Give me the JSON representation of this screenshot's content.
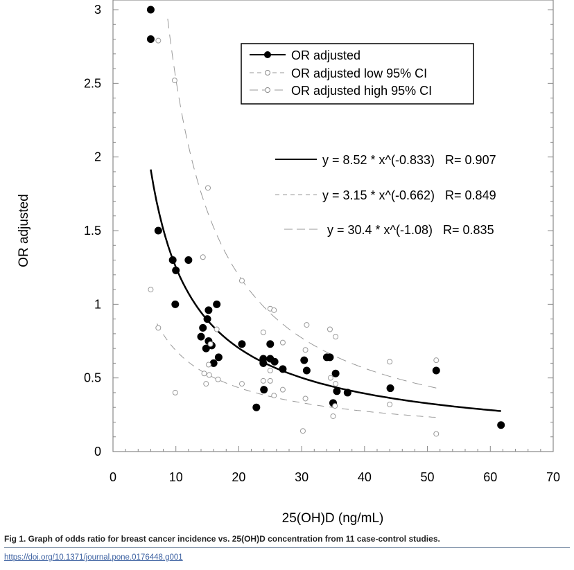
{
  "chart_data": {
    "type": "scatter",
    "title": "",
    "xlabel": "25(OH)D (ng/mL)",
    "ylabel": "OR adjusted",
    "xlim": [
      0,
      70
    ],
    "ylim": [
      0,
      3
    ],
    "xticks": [
      "0",
      "10",
      "20",
      "30",
      "40",
      "50",
      "60",
      "70"
    ],
    "yticks": [
      "0",
      "0.5",
      "1",
      "1.5",
      "2",
      "2.5",
      "3"
    ],
    "legend_position": "top-right",
    "series": [
      {
        "name": "OR adjusted",
        "marker": "filled",
        "points": [
          [
            6,
            3.0
          ],
          [
            6,
            2.8
          ],
          [
            7.2,
            1.5
          ],
          [
            9.5,
            1.3
          ],
          [
            12,
            1.3
          ],
          [
            10,
            1.23
          ],
          [
            9.9,
            1.0
          ],
          [
            16.5,
            1.0
          ],
          [
            15.2,
            0.96
          ],
          [
            15,
            0.9
          ],
          [
            14.3,
            0.84
          ],
          [
            14,
            0.78
          ],
          [
            15.2,
            0.75
          ],
          [
            15.7,
            0.72
          ],
          [
            14.8,
            0.7
          ],
          [
            16.8,
            0.64
          ],
          [
            16,
            0.6
          ],
          [
            20.5,
            0.73
          ],
          [
            25,
            0.73
          ],
          [
            23.9,
            0.63
          ],
          [
            23.9,
            0.6
          ],
          [
            25,
            0.63
          ],
          [
            25.7,
            0.61
          ],
          [
            27,
            0.56
          ],
          [
            24,
            0.42
          ],
          [
            22.8,
            0.3
          ],
          [
            30.4,
            0.62
          ],
          [
            30.8,
            0.55
          ],
          [
            34,
            0.64
          ],
          [
            34.5,
            0.64
          ],
          [
            35.4,
            0.53
          ],
          [
            35.6,
            0.41
          ],
          [
            37.3,
            0.4
          ],
          [
            35,
            0.33
          ],
          [
            44.1,
            0.43
          ],
          [
            51.4,
            0.55
          ],
          [
            61.7,
            0.18
          ]
        ]
      },
      {
        "name": "OR adjusted low 95% CI",
        "marker": "open",
        "points": [
          [
            6,
            1.1
          ],
          [
            7.2,
            0.84
          ],
          [
            9.9,
            0.4
          ],
          [
            14.5,
            0.53
          ],
          [
            14.8,
            0.46
          ],
          [
            15.2,
            0.59
          ],
          [
            15.3,
            0.52
          ],
          [
            16.7,
            0.49
          ],
          [
            20.5,
            0.46
          ],
          [
            23.9,
            0.48
          ],
          [
            25,
            0.48
          ],
          [
            25.6,
            0.38
          ],
          [
            27,
            0.42
          ],
          [
            30.6,
            0.36
          ],
          [
            30.2,
            0.14
          ],
          [
            35,
            0.24
          ],
          [
            35.3,
            0.31
          ],
          [
            44,
            0.32
          ],
          [
            51.4,
            0.12
          ],
          [
            34.6,
            0.5
          ],
          [
            35.4,
            0.46
          ],
          [
            25,
            0.55
          ]
        ]
      },
      {
        "name": "OR adjusted high 95% CI",
        "marker": "open",
        "points": [
          [
            7.2,
            2.79
          ],
          [
            9.8,
            2.52
          ],
          [
            15.1,
            1.79
          ],
          [
            14.3,
            1.32
          ],
          [
            20.5,
            1.16
          ],
          [
            25,
            0.97
          ],
          [
            25.6,
            0.96
          ],
          [
            23.9,
            0.81
          ],
          [
            27,
            0.74
          ],
          [
            30.8,
            0.86
          ],
          [
            30.6,
            0.69
          ],
          [
            34.5,
            0.83
          ],
          [
            35.4,
            0.78
          ],
          [
            44,
            0.61
          ],
          [
            51.4,
            0.62
          ],
          [
            16.5,
            0.83
          ],
          [
            15.5,
            0.73
          ]
        ]
      }
    ],
    "fits": [
      {
        "label": "y = 8.52 * x^(-0.833)   R= 0.907",
        "a": 8.52,
        "b": -0.833,
        "xrange": [
          6,
          61.7
        ],
        "style": "solid"
      },
      {
        "label": "y = 3.15 * x^(-0.662)   R= 0.849",
        "a": 3.15,
        "b": -0.662,
        "xrange": [
          7,
          51.4
        ],
        "style": "dash"
      },
      {
        "label": "y = 30.4 * x^(-1.08)   R= 0.835",
        "a": 30.4,
        "b": -1.08,
        "xrange": [
          8.7,
          51.4
        ],
        "style": "longdash"
      }
    ]
  },
  "caption": "Fig 1.  Graph of odds ratio for breast cancer incidence vs. 25(OH)D concentration from 11 case-control studies.",
  "doi": "https://doi.org/10.1371/journal.pone.0176448.g001"
}
